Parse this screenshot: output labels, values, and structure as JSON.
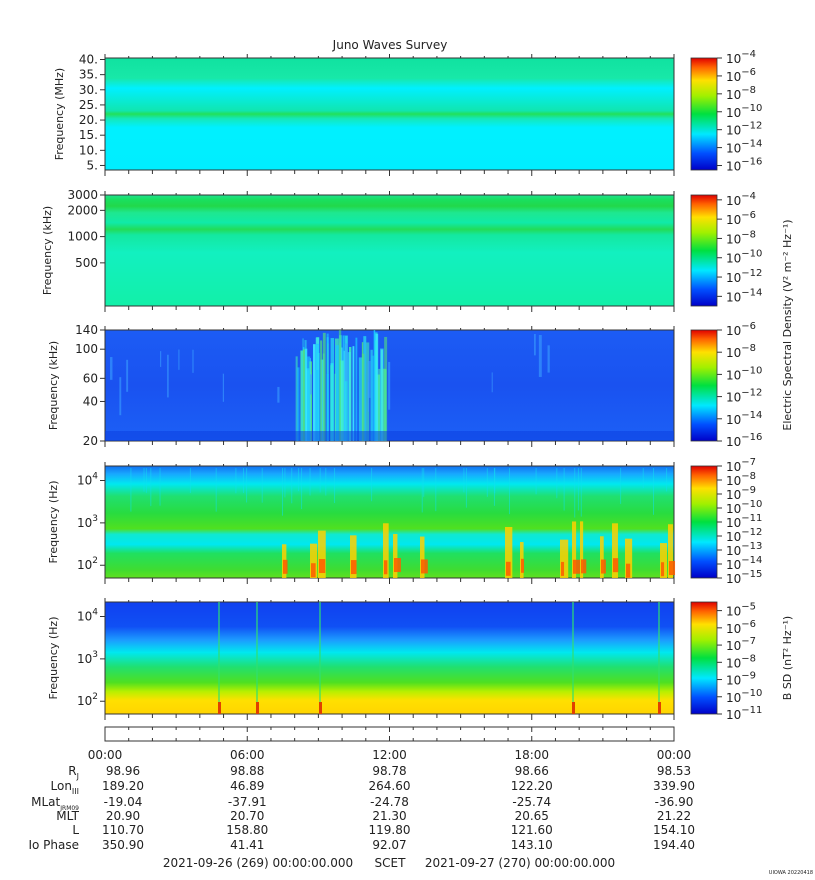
{
  "chart_data": {
    "type": "heatmap",
    "title": "Juno Waves Survey",
    "footer": {
      "start": "2021-09-26 (269) 00:00:00.000",
      "mid": "SCET",
      "end": "2021-09-27 (270) 00:00:00.000"
    },
    "credit": "UIOWA 20220418",
    "colorbar_labels": {
      "e_field": "Electric Spectral Density (V² m⁻² Hz⁻¹)",
      "b_field": "B SD (nT² Hz⁻¹)"
    },
    "panels": [
      {
        "name": "high-frequency",
        "ylabel": "Frequency (MHz)",
        "yscale": "linear",
        "ylim": [
          3.5,
          40.5
        ],
        "yticks": [
          {
            "value": 5,
            "label": "5."
          },
          {
            "value": 10,
            "label": "10."
          },
          {
            "value": 15,
            "label": "15."
          },
          {
            "value": 20,
            "label": "20."
          },
          {
            "value": 25,
            "label": "25."
          },
          {
            "value": 30,
            "label": "30."
          },
          {
            "value": 35,
            "label": "35."
          },
          {
            "value": 40,
            "label": "40."
          }
        ],
        "colorbar": {
          "min_exp": -16.5,
          "max_exp": -4,
          "ticks": [
            -16,
            -14,
            -12,
            -10,
            -8,
            -6,
            -4
          ]
        }
      },
      {
        "name": "mid-frequency",
        "ylabel": "Frequency (kHz)",
        "yscale": "log",
        "ylim": [
          160,
          3000
        ],
        "yticks": [
          {
            "value": 500,
            "label": "500"
          },
          {
            "value": 1000,
            "label": "1000"
          },
          {
            "value": 2000,
            "label": "2000"
          },
          {
            "value": 3000,
            "label": "3000"
          }
        ],
        "colorbar": {
          "min_exp": -15,
          "max_exp": -3.5,
          "ticks": [
            -14,
            -12,
            -10,
            -8,
            -6,
            -4
          ]
        }
      },
      {
        "name": "low-mid-frequency",
        "ylabel": "Frequency (kHz)",
        "yscale": "log",
        "ylim": [
          20,
          140
        ],
        "yticks": [
          {
            "value": 20,
            "label": "20"
          },
          {
            "value": 40,
            "label": "40"
          },
          {
            "value": 60,
            "label": "60"
          },
          {
            "value": 100,
            "label": "100"
          },
          {
            "value": 140,
            "label": "140"
          }
        ],
        "colorbar": {
          "min_exp": -16,
          "max_exp": -6,
          "ticks": [
            -16,
            -14,
            -12,
            -10,
            -8,
            -6
          ]
        }
      },
      {
        "name": "low-frequency-e",
        "ylabel": "Frequency (Hz)",
        "yscale": "log",
        "ylim": [
          50,
          22000
        ],
        "yticks": [
          {
            "value": 100,
            "label": "10",
            "sup": "2"
          },
          {
            "value": 1000,
            "label": "10",
            "sup": "3"
          },
          {
            "value": 10000,
            "label": "10",
            "sup": "4"
          }
        ],
        "colorbar": {
          "min_exp": -15,
          "max_exp": -7,
          "ticks": [
            -15,
            -14,
            -13,
            -12,
            -11,
            -10,
            -9,
            -8,
            -7
          ]
        }
      },
      {
        "name": "low-frequency-b",
        "ylabel": "Frequency (Hz)",
        "yscale": "log",
        "ylim": [
          50,
          22000
        ],
        "yticks": [
          {
            "value": 100,
            "label": "10",
            "sup": "2"
          },
          {
            "value": 1000,
            "label": "10",
            "sup": "3"
          },
          {
            "value": 10000,
            "label": "10",
            "sup": "4"
          }
        ],
        "colorbar": {
          "min_exp": -11,
          "max_exp": -4.5,
          "ticks": [
            -11,
            -10,
            -9,
            -8,
            -7,
            -6,
            -5
          ]
        }
      }
    ],
    "time_axis": {
      "xlim_hours": [
        0,
        24
      ],
      "ticks_hours": [
        0,
        6,
        12,
        18,
        24
      ],
      "tick_labels": [
        "00:00",
        "06:00",
        "12:00",
        "18:00",
        "00:00"
      ]
    },
    "ephemeris": [
      {
        "label": "R",
        "sub": "J",
        "values": [
          "98.96",
          "98.88",
          "98.78",
          "98.66",
          "98.53"
        ]
      },
      {
        "label": "Lon",
        "sub": "III",
        "values": [
          "189.20",
          "46.89",
          "264.60",
          "122.20",
          "339.90"
        ]
      },
      {
        "label": "MLat",
        "sub": "JRM09",
        "values": [
          "-19.04",
          "-37.91",
          "-24.78",
          "-25.74",
          "-36.90"
        ]
      },
      {
        "label": "MLT",
        "sub": "",
        "values": [
          "20.90",
          "20.70",
          "21.30",
          "20.65",
          "21.22"
        ]
      },
      {
        "label": "L",
        "sub": "",
        "values": [
          "110.70",
          "158.80",
          "119.80",
          "121.60",
          "154.10"
        ]
      },
      {
        "label": "Io Phase",
        "sub": "",
        "values": [
          "350.90",
          "41.41",
          "92.07",
          "143.10",
          "194.40"
        ]
      }
    ]
  }
}
